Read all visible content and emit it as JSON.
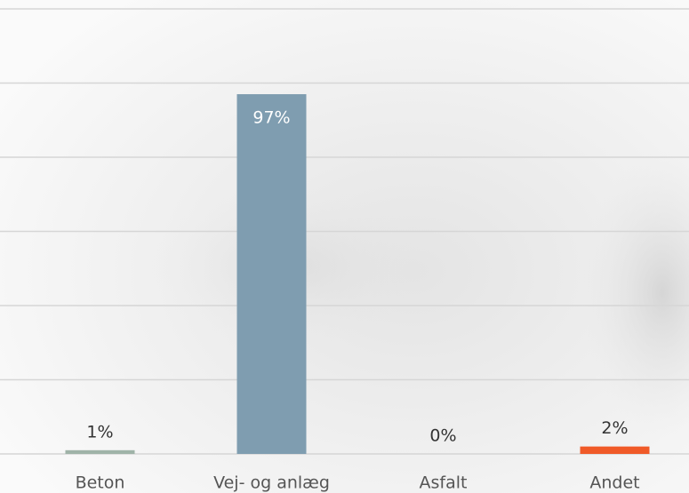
{
  "chart_data": {
    "type": "bar",
    "categories": [
      "Beton",
      "Vej- og anlæg",
      "Asfalt",
      "Andet"
    ],
    "values": [
      1,
      97,
      0,
      2
    ],
    "value_labels": [
      "1%",
      "97%",
      "0%",
      "2%"
    ],
    "colors": [
      "#9fb3a8",
      "#7f9db0",
      "#c9c9c9",
      "#f05a28"
    ],
    "ylim": [
      0,
      120
    ],
    "yticks": [
      0,
      20,
      40,
      60,
      80,
      100,
      120
    ],
    "grid": true
  }
}
